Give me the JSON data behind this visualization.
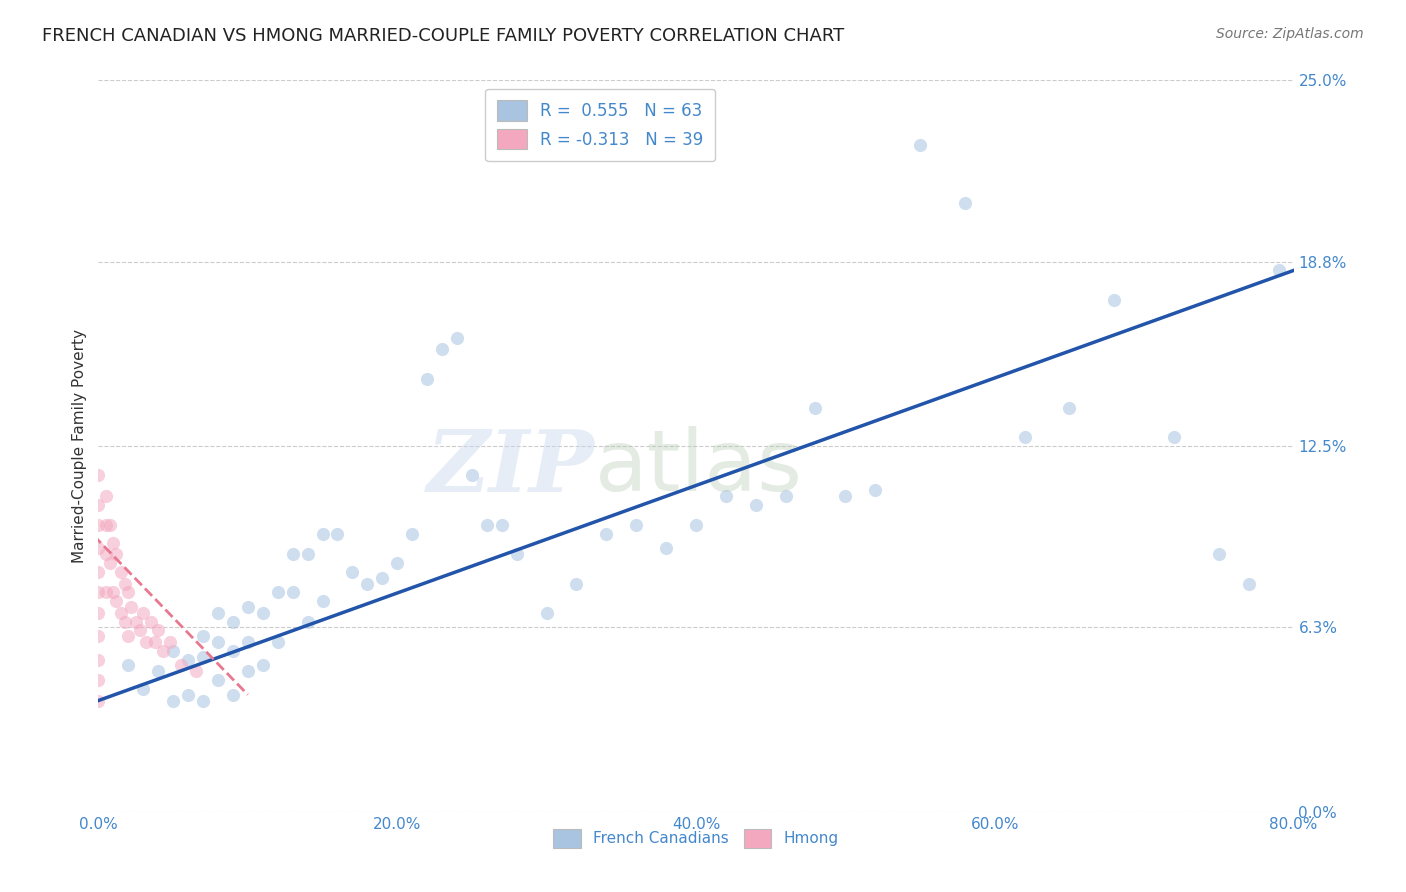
{
  "title": "FRENCH CANADIAN VS HMONG MARRIED-COUPLE FAMILY POVERTY CORRELATION CHART",
  "source": "Source: ZipAtlas.com",
  "xlabel_ticks": [
    "0.0%",
    "20.0%",
    "40.0%",
    "60.0%",
    "80.0%"
  ],
  "xlabel_tick_vals": [
    0.0,
    0.2,
    0.4,
    0.6,
    0.8
  ],
  "ylabel": "Married-Couple Family Poverty",
  "ylabel_ticks": [
    "0.0%",
    "6.3%",
    "12.5%",
    "18.8%",
    "25.0%"
  ],
  "ylabel_tick_vals": [
    0.0,
    0.063,
    0.125,
    0.188,
    0.25
  ],
  "xlim": [
    0.0,
    0.8
  ],
  "ylim": [
    0.0,
    0.25
  ],
  "legend_entries": [
    {
      "label": "R =  0.555   N = 63",
      "color": "#aac4e0"
    },
    {
      "label": "R = -0.313   N = 39",
      "color": "#f4a8b8"
    }
  ],
  "bottom_legend": [
    {
      "label": "French Canadians",
      "color": "#aac4e0"
    },
    {
      "label": "Hmong",
      "color": "#f4a8b8"
    }
  ],
  "french_canadian_x": [
    0.02,
    0.03,
    0.04,
    0.05,
    0.05,
    0.06,
    0.06,
    0.07,
    0.07,
    0.07,
    0.08,
    0.08,
    0.08,
    0.09,
    0.09,
    0.09,
    0.1,
    0.1,
    0.1,
    0.11,
    0.11,
    0.12,
    0.12,
    0.13,
    0.13,
    0.14,
    0.14,
    0.15,
    0.15,
    0.16,
    0.17,
    0.18,
    0.19,
    0.2,
    0.21,
    0.22,
    0.23,
    0.24,
    0.25,
    0.26,
    0.27,
    0.28,
    0.3,
    0.32,
    0.34,
    0.36,
    0.38,
    0.4,
    0.42,
    0.44,
    0.46,
    0.48,
    0.5,
    0.52,
    0.55,
    0.58,
    0.62,
    0.65,
    0.68,
    0.72,
    0.75,
    0.77,
    0.79
  ],
  "french_canadian_y": [
    0.05,
    0.042,
    0.048,
    0.038,
    0.055,
    0.04,
    0.052,
    0.038,
    0.053,
    0.06,
    0.045,
    0.058,
    0.068,
    0.04,
    0.055,
    0.065,
    0.048,
    0.058,
    0.07,
    0.05,
    0.068,
    0.058,
    0.075,
    0.075,
    0.088,
    0.065,
    0.088,
    0.072,
    0.095,
    0.095,
    0.082,
    0.078,
    0.08,
    0.085,
    0.095,
    0.148,
    0.158,
    0.162,
    0.115,
    0.098,
    0.098,
    0.088,
    0.068,
    0.078,
    0.095,
    0.098,
    0.09,
    0.098,
    0.108,
    0.105,
    0.108,
    0.138,
    0.108,
    0.11,
    0.228,
    0.208,
    0.128,
    0.138,
    0.175,
    0.128,
    0.088,
    0.078,
    0.185
  ],
  "hmong_x": [
    0.0,
    0.0,
    0.0,
    0.0,
    0.0,
    0.0,
    0.0,
    0.0,
    0.0,
    0.0,
    0.0,
    0.005,
    0.005,
    0.005,
    0.005,
    0.008,
    0.008,
    0.01,
    0.01,
    0.012,
    0.012,
    0.015,
    0.015,
    0.018,
    0.018,
    0.02,
    0.02,
    0.022,
    0.025,
    0.028,
    0.03,
    0.032,
    0.035,
    0.038,
    0.04,
    0.043,
    0.048,
    0.055,
    0.065
  ],
  "hmong_y": [
    0.115,
    0.105,
    0.098,
    0.09,
    0.082,
    0.075,
    0.068,
    0.06,
    0.052,
    0.045,
    0.038,
    0.108,
    0.098,
    0.088,
    0.075,
    0.098,
    0.085,
    0.092,
    0.075,
    0.088,
    0.072,
    0.082,
    0.068,
    0.078,
    0.065,
    0.075,
    0.06,
    0.07,
    0.065,
    0.062,
    0.068,
    0.058,
    0.065,
    0.058,
    0.062,
    0.055,
    0.058,
    0.05,
    0.048
  ],
  "fc_line_x": [
    0.0,
    0.8
  ],
  "fc_line_y": [
    0.038,
    0.185
  ],
  "hmong_line_x": [
    -0.01,
    0.1
  ],
  "hmong_line_y": [
    0.098,
    0.04
  ],
  "watermark_zip": "ZIP",
  "watermark_atlas": "atlas",
  "fc_dot_color": "#a8c4e0",
  "hmong_dot_color": "#f4a8c0",
  "fc_line_color": "#2255aa",
  "hmong_line_color": "#e87890",
  "dot_size": 90,
  "dot_alpha": 0.55,
  "grid_color": "#cccccc",
  "background_color": "#ffffff",
  "title_fontsize": 13,
  "source_fontsize": 10,
  "tick_color": "#4488cc",
  "tick_fontsize": 11
}
